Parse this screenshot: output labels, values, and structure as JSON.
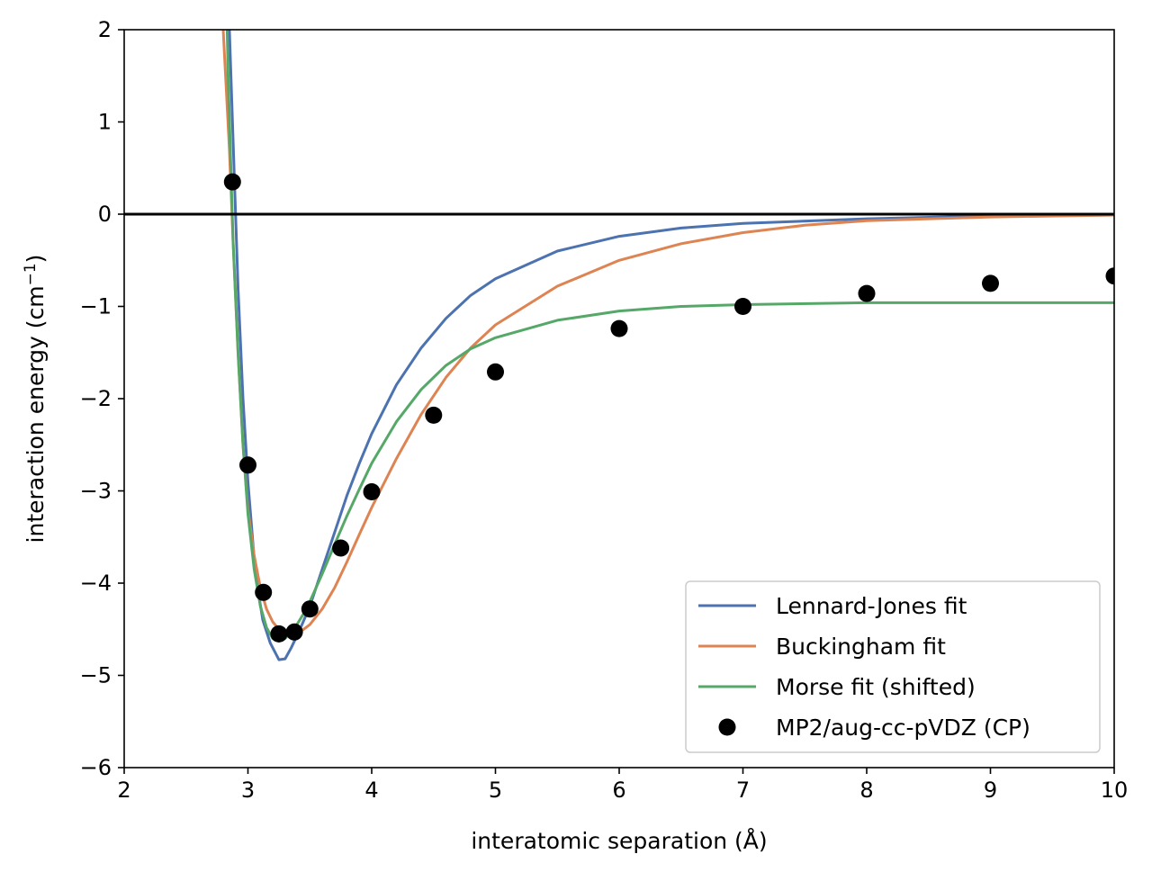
{
  "chart_data": {
    "type": "line",
    "title": "",
    "xlabel": "interatomic separation (Å)",
    "ylabel_main": "interaction energy (cm",
    "ylabel_sup": "−1",
    "ylabel_end": ")",
    "xlim": [
      2,
      10
    ],
    "ylim": [
      -6,
      2
    ],
    "xticks": [
      2,
      3,
      4,
      5,
      6,
      7,
      8,
      9,
      10
    ],
    "xtick_labels": [
      "2",
      "3",
      "4",
      "5",
      "6",
      "7",
      "8",
      "9",
      "10"
    ],
    "yticks": [
      2,
      1,
      0,
      -1,
      -2,
      -3,
      -4,
      -5,
      -6
    ],
    "ytick_labels": [
      "2",
      "1",
      "0",
      "−1",
      "−2",
      "−3",
      "−4",
      "−5",
      "−6"
    ],
    "grid": false,
    "legend_position": "lower right",
    "zero_line": true,
    "series": [
      {
        "name": "Lennard-Jones fit",
        "kind": "line",
        "color": "#4c72b0",
        "x": [
          2.8,
          2.85,
          2.88,
          2.92,
          2.96,
          3.0,
          3.06,
          3.12,
          3.18,
          3.25,
          3.3,
          3.35,
          3.42,
          3.5,
          3.6,
          3.7,
          3.8,
          3.9,
          4.0,
          4.2,
          4.4,
          4.6,
          4.8,
          5.0,
          5.5,
          6.0,
          6.5,
          7.0,
          8.0,
          9.0,
          10.0
        ],
        "y": [
          5.0,
          2.0,
          0.8,
          -0.8,
          -2.0,
          -2.9,
          -3.9,
          -4.4,
          -4.65,
          -4.83,
          -4.82,
          -4.7,
          -4.5,
          -4.25,
          -3.85,
          -3.45,
          -3.05,
          -2.7,
          -2.38,
          -1.85,
          -1.45,
          -1.13,
          -0.88,
          -0.7,
          -0.4,
          -0.24,
          -0.15,
          -0.1,
          -0.05,
          -0.02,
          -0.01
        ]
      },
      {
        "name": "Buckingham fit",
        "kind": "line",
        "color": "#dd8452",
        "x": [
          2.7,
          2.8,
          2.85,
          2.88,
          2.92,
          2.96,
          3.0,
          3.05,
          3.1,
          3.15,
          3.2,
          3.25,
          3.3,
          3.35,
          3.4,
          3.45,
          3.5,
          3.6,
          3.7,
          3.8,
          3.9,
          4.0,
          4.2,
          4.4,
          4.6,
          4.8,
          5.0,
          5.5,
          6.0,
          6.5,
          7.0,
          7.5,
          8.0,
          9.0,
          10.0
        ],
        "y": [
          6.0,
          2.0,
          0.7,
          -0.3,
          -1.5,
          -2.5,
          -3.2,
          -3.7,
          -4.05,
          -4.28,
          -4.42,
          -4.5,
          -4.54,
          -4.55,
          -4.54,
          -4.5,
          -4.45,
          -4.28,
          -4.05,
          -3.77,
          -3.47,
          -3.18,
          -2.65,
          -2.17,
          -1.77,
          -1.45,
          -1.2,
          -0.78,
          -0.5,
          -0.32,
          -0.2,
          -0.12,
          -0.07,
          -0.03,
          -0.01
        ]
      },
      {
        "name": "Morse fit (shifted)",
        "kind": "line",
        "color": "#55a868",
        "x": [
          2.8,
          2.84,
          2.88,
          2.92,
          2.96,
          3.0,
          3.05,
          3.1,
          3.15,
          3.2,
          3.25,
          3.3,
          3.35,
          3.4,
          3.45,
          3.5,
          3.6,
          3.7,
          3.8,
          3.9,
          4.0,
          4.2,
          4.4,
          4.6,
          4.8,
          5.0,
          5.5,
          6.0,
          6.5,
          7.0,
          8.0,
          9.0,
          10.0
        ],
        "y": [
          4.0,
          1.5,
          -0.3,
          -1.5,
          -2.5,
          -3.25,
          -3.85,
          -4.25,
          -4.48,
          -4.6,
          -4.63,
          -4.6,
          -4.53,
          -4.44,
          -4.33,
          -4.2,
          -3.9,
          -3.58,
          -3.27,
          -2.98,
          -2.7,
          -2.25,
          -1.9,
          -1.64,
          -1.46,
          -1.34,
          -1.15,
          -1.05,
          -1.0,
          -0.98,
          -0.96,
          -0.96,
          -0.96
        ]
      },
      {
        "name": "MP2/aug-cc-pVDZ (CP)",
        "kind": "scatter",
        "color": "#000000",
        "x": [
          2.875,
          3.0,
          3.125,
          3.25,
          3.375,
          3.5,
          3.75,
          4.0,
          4.5,
          5.0,
          6.0,
          7.0,
          8.0,
          9.0,
          10.0
        ],
        "y": [
          0.35,
          -2.72,
          -4.1,
          -4.55,
          -4.53,
          -4.28,
          -3.62,
          -3.01,
          -2.18,
          -1.71,
          -1.24,
          -1.0,
          -0.86,
          -0.75,
          -0.67
        ]
      }
    ]
  }
}
